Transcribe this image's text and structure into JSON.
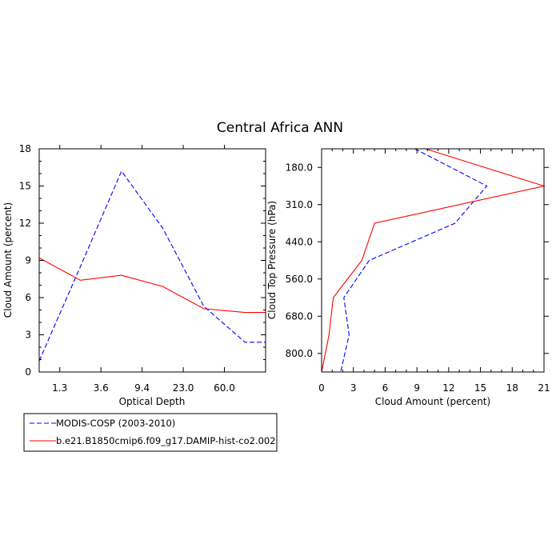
{
  "figure": {
    "title": "Central Africa ANN"
  },
  "chart_data": [
    {
      "type": "line",
      "xlabel": "Optical Depth",
      "ylabel": "Cloud Amount (percent)",
      "x_tick_labels": [
        "1.3",
        "3.6",
        "9.4",
        "23.0",
        "60.0"
      ],
      "y_ticks": [
        0,
        3,
        6,
        9,
        12,
        15,
        18
      ],
      "ylim": [
        0,
        18
      ],
      "x_bins": 7,
      "series": [
        {
          "name": "MODIS-COSP (2003-2010)",
          "style": "dashed",
          "color": "#0000ff",
          "x": [
            0,
            2,
            4,
            6,
            8,
            10,
            11
          ],
          "y": [
            0.9,
            8.5,
            16.2,
            11.6,
            5.3,
            2.4,
            2.4
          ]
        },
        {
          "name": "b.e21.B1850cmip6.f09_g17.DAMIP-hist-co2.002",
          "style": "solid",
          "color": "#ff0000",
          "x": [
            0,
            2,
            4,
            6,
            8,
            10,
            11
          ],
          "y": [
            9.2,
            7.4,
            7.8,
            6.9,
            5.1,
            4.8,
            4.8
          ]
        }
      ]
    },
    {
      "type": "line",
      "xlabel": "Cloud Amount (percent)",
      "ylabel": "Cloud Top Pressure (hPa)",
      "x_ticks": [
        0,
        3,
        6,
        9,
        12,
        15,
        18,
        21
      ],
      "xlim": [
        0,
        21
      ],
      "y_tick_labels": [
        "180.0",
        "310.0",
        "440.0",
        "560.0",
        "680.0",
        "800.0"
      ],
      "y_levels": 7,
      "series": [
        {
          "name": "MODIS-COSP (2003-2010)",
          "style": "dashed",
          "color": "#0000ff",
          "level": [
            0,
            1,
            2,
            3,
            4,
            5,
            6
          ],
          "x": [
            8.8,
            15.6,
            12.6,
            4.5,
            2.1,
            2.6,
            1.8
          ]
        },
        {
          "name": "b.e21.B1850cmip6.f09_g17.DAMIP-hist-co2.002",
          "style": "solid",
          "color": "#ff0000",
          "level": [
            0,
            1,
            2,
            3,
            4,
            5,
            6
          ],
          "x": [
            9.8,
            21.0,
            5.0,
            3.8,
            1.1,
            0.7,
            0.0
          ]
        }
      ]
    }
  ],
  "legend": {
    "entries": [
      {
        "label": "MODIS-COSP (2003-2010)",
        "style": "dashed",
        "color": "#0000ff"
      },
      {
        "label": "b.e21.B1850cmip6.f09_g17.DAMIP-hist-co2.002",
        "style": "solid",
        "color": "#ff0000"
      }
    ]
  }
}
